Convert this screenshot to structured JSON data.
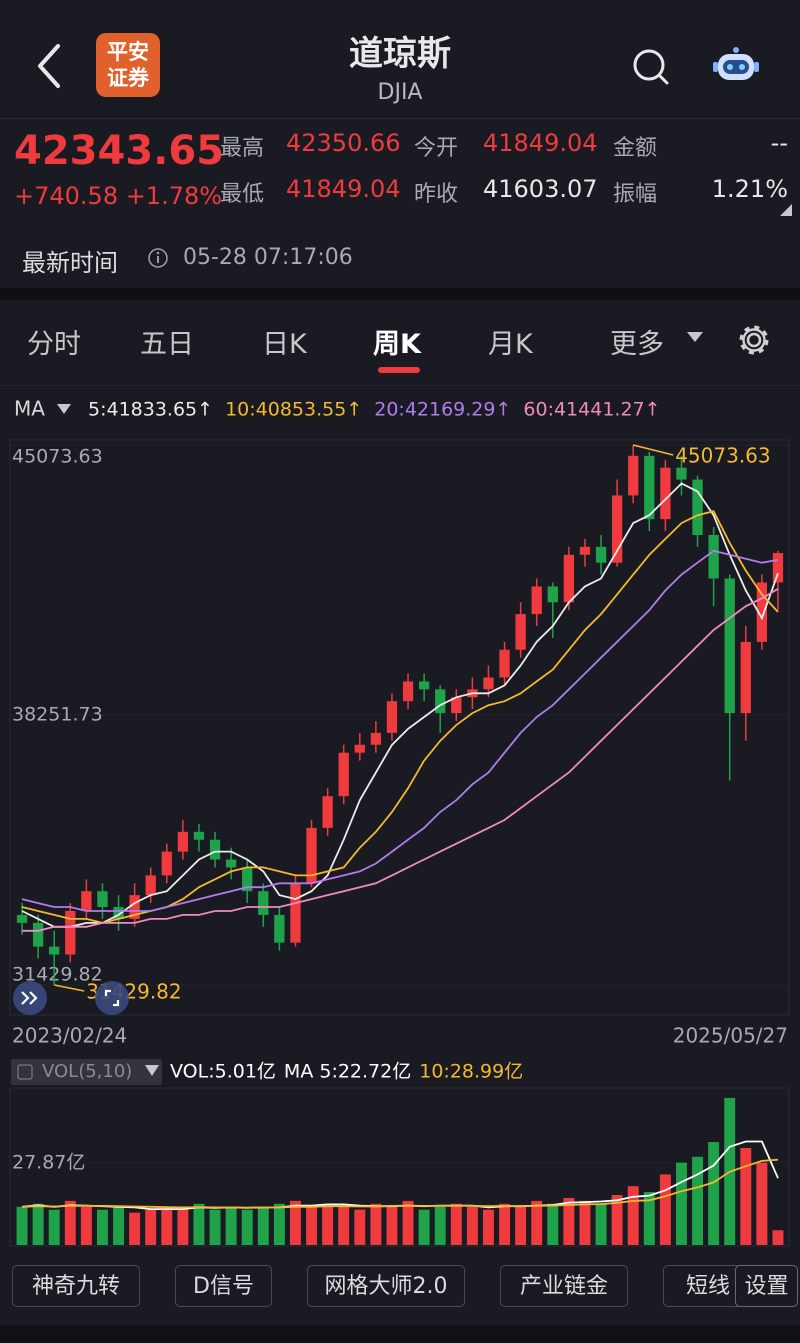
{
  "header": {
    "title": "道琼斯",
    "subtitle": "DJIA",
    "logo": [
      "平安",
      "证券"
    ]
  },
  "quote": {
    "price": "42343.65",
    "change": "+740.58 +1.78%",
    "stats": [
      {
        "label": "最高",
        "value": "42350.66",
        "color": "#ef3b3e"
      },
      {
        "label": "今开",
        "value": "41849.04",
        "color": "#ef3b3e"
      },
      {
        "label": "金额",
        "value": "--",
        "color": "#e8e8ea"
      },
      {
        "label": "最低",
        "value": "41849.04",
        "color": "#ef3b3e"
      },
      {
        "label": "昨收",
        "value": "41603.07",
        "color": "#e8e8ea"
      },
      {
        "label": "振幅",
        "value": "1.21%",
        "color": "#e8e8ea"
      }
    ],
    "time_label": "最新时间",
    "time": "05-28 07:17:06"
  },
  "tabs": {
    "items": [
      "分时",
      "五日",
      "日K",
      "周K",
      "月K",
      "更多"
    ],
    "active": 3
  },
  "chart_data": [
    {
      "type": "candlestick",
      "indicator": "MA",
      "categories": [
        "2023/02/24",
        null,
        null,
        null,
        null,
        null,
        null,
        null,
        null,
        null,
        null,
        null,
        null,
        null,
        null,
        null,
        null,
        null,
        null,
        null,
        null,
        null,
        null,
        null,
        null,
        null,
        null,
        null,
        null,
        null,
        null,
        null,
        null,
        null,
        null,
        null,
        null,
        null,
        null,
        null,
        null,
        null,
        null,
        null,
        null,
        null,
        null,
        "2025/05/27"
      ],
      "open": [
        33200,
        33000,
        32400,
        32200,
        33300,
        33800,
        33400,
        33100,
        33700,
        34200,
        34800,
        35300,
        35100,
        34600,
        34400,
        33800,
        33200,
        32500,
        34000,
        35400,
        36200,
        37300,
        37500,
        37800,
        38600,
        39100,
        38900,
        38300,
        38700,
        38900,
        39200,
        39900,
        40800,
        41500,
        41100,
        42300,
        42500,
        42100,
        43800,
        44800,
        43200,
        44500,
        44200,
        42800,
        41700,
        38300,
        40100,
        41600
      ],
      "high": [
        33500,
        33200,
        32800,
        33500,
        34100,
        34000,
        33700,
        34000,
        34400,
        35000,
        35600,
        35500,
        35300,
        34900,
        34600,
        34000,
        33400,
        34200,
        35600,
        36400,
        37500,
        37800,
        38100,
        38800,
        39300,
        39300,
        39000,
        38900,
        39200,
        39500,
        40100,
        41100,
        41700,
        41600,
        42500,
        42700,
        42800,
        44200,
        45073.63,
        44900,
        44700,
        44800,
        44300,
        43000,
        41800,
        40500,
        41800,
        42400
      ],
      "low": [
        32700,
        32100,
        31429.82,
        32000,
        33100,
        33100,
        32800,
        32900,
        33500,
        34000,
        34600,
        34800,
        34400,
        34100,
        33500,
        32900,
        32300,
        32400,
        33900,
        35200,
        36000,
        37100,
        37300,
        37600,
        38400,
        38600,
        37800,
        38100,
        38400,
        38700,
        39000,
        39700,
        40500,
        40200,
        40900,
        42000,
        41800,
        42000,
        43600,
        42900,
        42900,
        43800,
        42500,
        41000,
        36600,
        37600,
        39900,
        40900
      ],
      "close": [
        33000,
        32400,
        32200,
        33300,
        33800,
        33400,
        33100,
        33700,
        34200,
        34800,
        35300,
        35100,
        34600,
        34400,
        33800,
        33200,
        32500,
        34000,
        35400,
        36200,
        37300,
        37500,
        37800,
        38600,
        39100,
        38900,
        38300,
        38700,
        38900,
        39200,
        39900,
        40800,
        41500,
        41100,
        42300,
        42500,
        42100,
        43800,
        44800,
        43200,
        44500,
        44200,
        42800,
        41700,
        38300,
        40100,
        41600,
        42343.65
      ],
      "up_color": "#ef3b3e",
      "down_color": "#1fa34a",
      "ylim": [
        31429.82,
        45073.63
      ],
      "yticks": [
        31429.82,
        38251.73,
        45073.63
      ],
      "series": [
        {
          "name": "5:41833.65↑",
          "color": "#ececec",
          "values": [
            33300,
            33100,
            32900,
            32900,
            33000,
            33000,
            33200,
            33500,
            33700,
            33800,
            34200,
            34600,
            34800,
            34800,
            34600,
            34300,
            33700,
            33600,
            33800,
            34200,
            35100,
            36100,
            36800,
            37500,
            37900,
            38200,
            38500,
            38700,
            38800,
            38800,
            39000,
            39500,
            40100,
            40500,
            41100,
            41500,
            41700,
            42400,
            43100,
            43300,
            43700,
            44100,
            43900,
            43300,
            42300,
            41400,
            40700,
            41833.65
          ]
        },
        {
          "name": "10:40853.55↑",
          "color": "#f5b82e",
          "values": [
            33400,
            33300,
            33200,
            33100,
            33100,
            33000,
            33100,
            33200,
            33300,
            33400,
            33600,
            33900,
            34100,
            34300,
            34400,
            34400,
            34300,
            34200,
            34200,
            34300,
            34400,
            34900,
            35300,
            35800,
            36400,
            37100,
            37600,
            38000,
            38300,
            38500,
            38600,
            38800,
            39100,
            39400,
            39900,
            40400,
            40800,
            41300,
            41800,
            42300,
            42700,
            43100,
            43300,
            43400,
            42600,
            41900,
            41300,
            40853.55
          ]
        },
        {
          "name": "20:42169.29↑",
          "color": "#b07cf0",
          "values": [
            33600,
            33500,
            33400,
            33400,
            33300,
            33300,
            33300,
            33300,
            33300,
            33400,
            33500,
            33600,
            33700,
            33800,
            33900,
            33900,
            34000,
            34000,
            34000,
            34100,
            34200,
            34300,
            34500,
            34800,
            35100,
            35400,
            35800,
            36100,
            36500,
            36800,
            37300,
            37800,
            38200,
            38500,
            38900,
            39300,
            39700,
            40100,
            40500,
            40900,
            41400,
            41800,
            42100,
            42400,
            42300,
            42200,
            42100,
            42169.29
          ]
        },
        {
          "name": "60:41441.27↑",
          "color": "#f08bc0",
          "values": [
            32800,
            32800,
            32900,
            32900,
            32900,
            33000,
            33000,
            33000,
            33100,
            33100,
            33200,
            33200,
            33300,
            33300,
            33400,
            33400,
            33400,
            33500,
            33600,
            33700,
            33800,
            33900,
            34000,
            34200,
            34400,
            34600,
            34800,
            35000,
            35200,
            35400,
            35600,
            35900,
            36200,
            36500,
            36800,
            37200,
            37600,
            38000,
            38400,
            38800,
            39200,
            39600,
            40000,
            40400,
            40700,
            41000,
            41200,
            41441.27
          ]
        }
      ],
      "annotation_color": "#f5b82e"
    },
    {
      "type": "bar",
      "indicator": "VOL(5,10)",
      "ylim": [
        0,
        52.7
      ],
      "yticks": [
        {
          "value": 27.87,
          "label": "27.87亿"
        }
      ],
      "series": [
        {
          "name": "VOL:5.01亿",
          "color": "#ffffff",
          "values": [
            13,
            14,
            12,
            15,
            13,
            12,
            13,
            11,
            12,
            13,
            12,
            14,
            12,
            13,
            12,
            13,
            14,
            15,
            13,
            14,
            13,
            12,
            14,
            13,
            15,
            12,
            13,
            14,
            13,
            12,
            14,
            13,
            15,
            14,
            16,
            15,
            14,
            17,
            20,
            18,
            24,
            28,
            30,
            35,
            50,
            33,
            28,
            5.01
          ]
        },
        {
          "name": "MA 5:22.72亿",
          "color": "#ffffff",
          "values": [
            13,
            13.5,
            13,
            13.5,
            13.4,
            13.2,
            13,
            12.8,
            12.2,
            12.2,
            12.2,
            12.8,
            12.6,
            12.8,
            12.6,
            12.8,
            12.8,
            13.4,
            13.4,
            13.8,
            13.8,
            13.4,
            13.2,
            13.2,
            13.4,
            13.2,
            13.4,
            13.4,
            13.4,
            12.8,
            13.2,
            13.2,
            13.4,
            13.6,
            14.4,
            14.6,
            14.8,
            15.2,
            16.4,
            16.8,
            18.6,
            21.4,
            24,
            27,
            33.4,
            35.2,
            35.2,
            22.72
          ]
        },
        {
          "name": "10:28.99亿",
          "color": "#f5b82e",
          "values": [
            13,
            13.2,
            13.1,
            13.3,
            13.3,
            13.3,
            13.2,
            13.1,
            13,
            12.9,
            12.8,
            12.9,
            12.8,
            12.8,
            12.7,
            12.8,
            12.8,
            13,
            13,
            13.2,
            13.2,
            13.1,
            13.1,
            13.3,
            13.4,
            13.3,
            13.3,
            13.3,
            13.3,
            13.2,
            13.3,
            13.2,
            13.3,
            13.4,
            13.6,
            13.8,
            13.9,
            14.3,
            15,
            15.2,
            16.6,
            18.3,
            19.6,
            21.3,
            24.9,
            26.8,
            28.6,
            28.99
          ]
        }
      ]
    }
  ],
  "toolbar": [
    "神奇九转",
    "D信号",
    "网格大师2.0",
    "产业链金",
    "短线",
    "设置"
  ]
}
